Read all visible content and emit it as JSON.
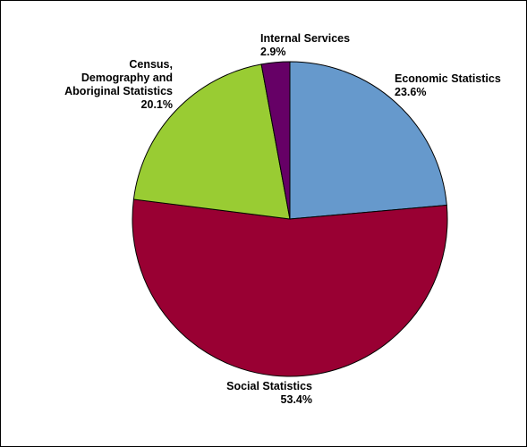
{
  "chart_data": {
    "type": "pie",
    "title": "",
    "slices": [
      {
        "name": "Economic Statistics",
        "value": 23.6,
        "label_value": "23.6%",
        "color": "#6699CC"
      },
      {
        "name": "Social Statistics",
        "value": 53.4,
        "label_value": "53.4%",
        "color": "#990033"
      },
      {
        "name": "Census, Demography and Aboriginal Statistics",
        "value": 20.1,
        "label_value": "20.1%",
        "color": "#99CC33"
      },
      {
        "name": "Internal Services",
        "value": 2.9,
        "label_value": "2.9%",
        "color": "#660066"
      }
    ],
    "labels": {
      "economic": {
        "line1": "Economic Statistics",
        "value": "23.6%"
      },
      "social": {
        "line1": "Social Statistics",
        "value": "53.4%"
      },
      "census": {
        "line1": "Census,",
        "line2": "Demography and",
        "line3": "Aboriginal Statistics",
        "value": "20.1%"
      },
      "internal": {
        "line1": "Internal Services",
        "value": "2.9%"
      }
    },
    "start_angle": "12 o'clock",
    "direction": "clockwise",
    "legend": "none",
    "slice_outline_color": "#000000"
  }
}
